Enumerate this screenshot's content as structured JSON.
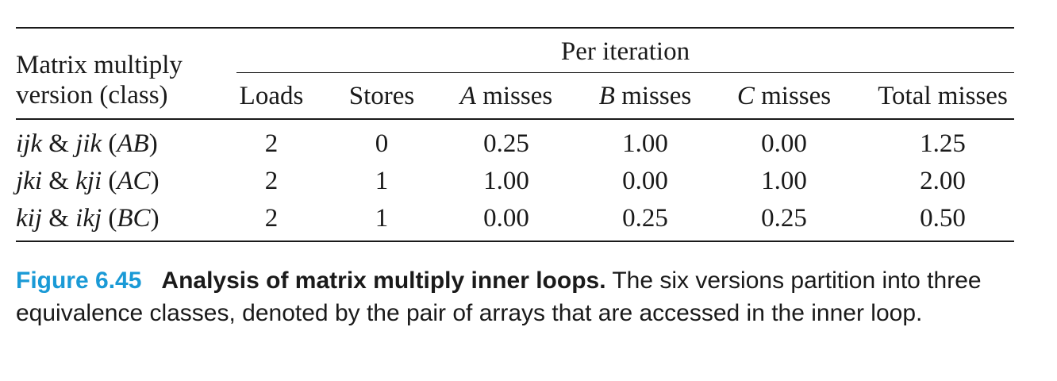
{
  "table": {
    "row_header": [
      "Matrix multiply",
      "version (class)"
    ],
    "group_header": "Per iteration",
    "columns": [
      {
        "plain": "Loads",
        "italic": ""
      },
      {
        "plain": "Stores",
        "italic": ""
      },
      {
        "italic": "A",
        "plain": " misses"
      },
      {
        "italic": "B",
        "plain": " misses"
      },
      {
        "italic": "C",
        "plain": " misses"
      },
      {
        "plain": "Total misses",
        "italic": ""
      }
    ],
    "rows": [
      {
        "v1": "ijk",
        "amp": " & ",
        "v2": "jik",
        "cls": "AB",
        "values": [
          "2",
          "0",
          "0.25",
          "1.00",
          "0.00",
          "1.25"
        ]
      },
      {
        "v1": "jki",
        "amp": " & ",
        "v2": "kji",
        "cls": "AC",
        "values": [
          "2",
          "1",
          "1.00",
          "0.00",
          "1.00",
          "2.00"
        ]
      },
      {
        "v1": "kij",
        "amp": " & ",
        "v2": "ikj",
        "cls": "BC",
        "values": [
          "2",
          "1",
          "0.00",
          "0.25",
          "0.25",
          "0.50"
        ]
      }
    ]
  },
  "caption": {
    "figure_number": "Figure 6.45",
    "title": "Analysis of matrix multiply inner loops.",
    "text": " The six versions partition into three equivalence classes, denoted by the pair of arrays that are accessed in the inner loop."
  }
}
